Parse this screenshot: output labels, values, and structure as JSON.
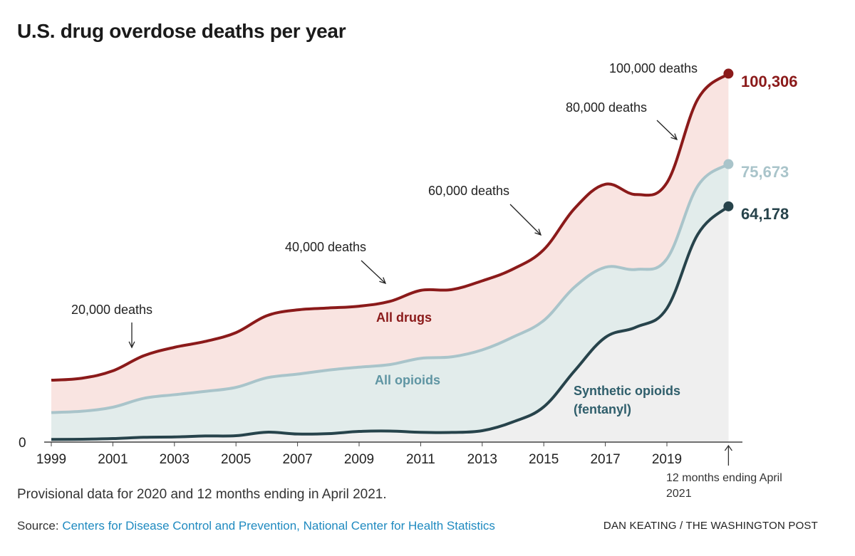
{
  "title": "U.S. drug overdose deaths per year",
  "note": "Provisional data for 2020 and 12 months ending in April 2021.",
  "source": {
    "label": "Source:",
    "link_text": "Centers for Disease Control and Prevention, National Center for Health Statistics"
  },
  "credit": "DAN KEATING / THE WASHINGTON POST",
  "end_note": "12 months ending April 2021",
  "colors": {
    "all_drugs": "#8b1a1a",
    "all_drugs_fill": "#f9e4e1",
    "all_opioids": "#a9c4ca",
    "all_opioids_fill": "#e2eceb",
    "synthetic": "#27434b",
    "synthetic_label": "#2f5e6b",
    "synthetic_fill": "#efefef",
    "all_opioids_label": "#5f95a3"
  },
  "chart_data": {
    "type": "area",
    "x_ticks": [
      "1999",
      "2001",
      "2003",
      "2005",
      "2007",
      "2009",
      "2011",
      "2013",
      "2015",
      "2017",
      "2019"
    ],
    "y_ticks": [
      "0"
    ],
    "x": [
      "1999",
      "2000",
      "2001",
      "2002",
      "2003",
      "2004",
      "2005",
      "2006",
      "2007",
      "2008",
      "2009",
      "2010",
      "2011",
      "2012",
      "2013",
      "2014",
      "2015",
      "2016",
      "2017",
      "2018",
      "2019",
      "2020",
      "12 months ending April 2021"
    ],
    "ylim": [
      0,
      110000
    ],
    "series": [
      {
        "name": "All drugs",
        "values": [
          16850,
          17400,
          19400,
          23500,
          25800,
          27400,
          29800,
          34400,
          36000,
          36500,
          37000,
          38300,
          41300,
          41500,
          43900,
          47100,
          52400,
          63600,
          70200,
          67400,
          70600,
          93300,
          100306
        ]
      },
      {
        "name": "All opioids",
        "values": [
          8050,
          8400,
          9500,
          11900,
          12900,
          13800,
          14900,
          17500,
          18500,
          19600,
          20400,
          21100,
          22800,
          23200,
          25100,
          28600,
          33100,
          42200,
          47600,
          47000,
          49900,
          69700,
          75673
        ]
      },
      {
        "name": "Synthetic opioids (fentanyl)",
        "values": [
          730,
          780,
          960,
          1300,
          1400,
          1660,
          1740,
          2700,
          2200,
          2300,
          2900,
          3000,
          2660,
          2630,
          3100,
          5500,
          9600,
          19400,
          28500,
          31300,
          36400,
          56500,
          64178
        ]
      }
    ],
    "end_labels": [
      "100,306",
      "75,673",
      "64,178"
    ],
    "annotations": [
      "20,000 deaths",
      "40,000 deaths",
      "60,000 deaths",
      "80,000 deaths",
      "100,000 deaths"
    ]
  }
}
